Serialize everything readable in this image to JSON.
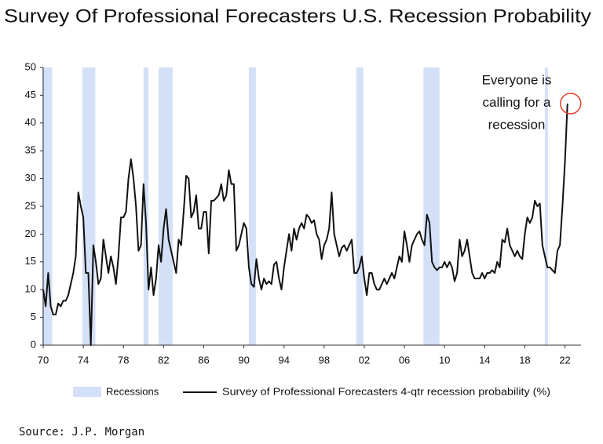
{
  "chart_data": {
    "type": "line",
    "title": "Survey Of Professional Forecasters U.S. Recession Probability",
    "source": "Source: J.P. Morgan",
    "annotation": [
      "Everyone is",
      "calling for a",
      "recession"
    ],
    "annotation_color": "#e0402a",
    "shading": {
      "name": "Recessions",
      "color": "#d3e0f7",
      "periods": [
        [
          1969.9,
          1970.9
        ],
        [
          1973.9,
          1975.2
        ],
        [
          1980.0,
          1980.5
        ],
        [
          1981.5,
          1982.9
        ],
        [
          1990.5,
          1991.2
        ],
        [
          2001.2,
          2001.9
        ],
        [
          2007.9,
          2009.5
        ],
        [
          2020.0,
          2020.3
        ]
      ]
    },
    "xlim": [
      1970,
      2023.6
    ],
    "xticks": [
      {
        "value": 1970,
        "label": "70"
      },
      {
        "value": 1974,
        "label": "74"
      },
      {
        "value": 1978,
        "label": "78"
      },
      {
        "value": 1982,
        "label": "82"
      },
      {
        "value": 1986,
        "label": "86"
      },
      {
        "value": 1990,
        "label": "90"
      },
      {
        "value": 1994,
        "label": "94"
      },
      {
        "value": 1998,
        "label": "98"
      },
      {
        "value": 2002,
        "label": "02"
      },
      {
        "value": 2006,
        "label": "06"
      },
      {
        "value": 2010,
        "label": "10"
      },
      {
        "value": 2014,
        "label": "14"
      },
      {
        "value": 2018,
        "label": "18"
      },
      {
        "value": 2022,
        "label": "22"
      }
    ],
    "ylim": [
      0,
      50
    ],
    "yticks": [
      0,
      5,
      10,
      15,
      20,
      25,
      30,
      35,
      40,
      45,
      50
    ],
    "x": [
      1970,
      1970.25,
      1970.5,
      1970.75,
      1971,
      1971.25,
      1971.5,
      1971.75,
      1972,
      1972.25,
      1972.5,
      1972.75,
      1973,
      1973.25,
      1973.5,
      1973.75,
      1974,
      1974.25,
      1974.5,
      1974.75,
      1975,
      1975.25,
      1975.5,
      1975.75,
      1976,
      1976.25,
      1976.5,
      1976.75,
      1977,
      1977.25,
      1977.5,
      1977.75,
      1978,
      1978.25,
      1978.5,
      1978.75,
      1979,
      1979.25,
      1979.5,
      1979.75,
      1980,
      1980.25,
      1980.5,
      1980.75,
      1981,
      1981.25,
      1981.5,
      1981.75,
      1982,
      1982.25,
      1982.5,
      1982.75,
      1983,
      1983.25,
      1983.5,
      1983.75,
      1984,
      1984.25,
      1984.5,
      1984.75,
      1985,
      1985.25,
      1985.5,
      1985.75,
      1986,
      1986.25,
      1986.5,
      1986.75,
      1987,
      1987.25,
      1987.5,
      1987.75,
      1988,
      1988.25,
      1988.5,
      1988.75,
      1989,
      1989.25,
      1989.5,
      1989.75,
      1990,
      1990.25,
      1990.5,
      1990.75,
      1991,
      1991.25,
      1991.5,
      1991.75,
      1992,
      1992.25,
      1992.5,
      1992.75,
      1993,
      1993.25,
      1993.5,
      1993.75,
      1994,
      1994.25,
      1994.5,
      1994.75,
      1995,
      1995.25,
      1995.5,
      1995.75,
      1996,
      1996.25,
      1996.5,
      1996.75,
      1997,
      1997.25,
      1997.5,
      1997.75,
      1998,
      1998.25,
      1998.5,
      1998.75,
      1999,
      1999.25,
      1999.5,
      1999.75,
      2000,
      2000.25,
      2000.5,
      2000.75,
      2001,
      2001.25,
      2001.5,
      2001.75,
      2002,
      2002.25,
      2002.5,
      2002.75,
      2003,
      2003.25,
      2003.5,
      2003.75,
      2004,
      2004.25,
      2004.5,
      2004.75,
      2005,
      2005.25,
      2005.5,
      2005.75,
      2006,
      2006.25,
      2006.5,
      2006.75,
      2007,
      2007.25,
      2007.5,
      2007.75,
      2008,
      2008.25,
      2008.5,
      2008.75,
      2009,
      2009.25,
      2009.5,
      2009.75,
      2010,
      2010.25,
      2010.5,
      2010.75,
      2011,
      2011.25,
      2011.5,
      2011.75,
      2012,
      2012.25,
      2012.5,
      2012.75,
      2013,
      2013.25,
      2013.5,
      2013.75,
      2014,
      2014.25,
      2014.5,
      2014.75,
      2015,
      2015.25,
      2015.5,
      2015.75,
      2016,
      2016.25,
      2016.5,
      2016.75,
      2017,
      2017.25,
      2017.5,
      2017.75,
      2018,
      2018.25,
      2018.5,
      2018.75,
      2019,
      2019.25,
      2019.5,
      2019.75,
      2020,
      2020.25,
      2020.5,
      2020.75,
      2021,
      2021.25,
      2021.5,
      2021.75,
      2022,
      2022.25
    ],
    "series": [
      {
        "name": "Survey of Professional Forecasters 4-qtr recession probability (%)",
        "color": "#111111",
        "values": [
          10,
          7,
          13,
          7,
          5.5,
          5.5,
          7.5,
          7,
          8,
          8,
          9,
          11,
          13,
          16,
          27.5,
          25,
          23,
          13,
          13,
          0,
          18,
          15,
          11,
          12,
          19,
          16,
          13,
          16,
          14,
          11,
          16,
          23,
          23,
          24,
          30,
          33.5,
          30,
          25,
          17,
          18,
          29,
          22,
          10,
          14,
          9,
          12,
          18,
          15,
          21,
          24.5,
          19,
          17,
          15,
          13,
          19,
          18,
          24,
          30.5,
          30,
          23,
          24,
          27,
          21,
          21,
          24,
          24,
          16.5,
          26,
          26,
          26.5,
          27,
          29,
          26,
          27,
          31.5,
          29,
          29,
          17,
          18,
          20,
          22,
          21,
          14,
          11,
          10.5,
          15.5,
          12,
          10,
          12,
          11,
          11.5,
          11,
          14.5,
          15,
          12,
          10,
          14,
          17,
          20,
          17,
          21,
          19,
          21,
          22,
          21,
          23.5,
          23,
          22,
          22.5,
          20,
          19,
          15.5,
          18,
          19,
          21,
          27.5,
          20,
          18,
          16,
          17.5,
          18,
          17,
          18,
          19,
          13,
          13,
          14,
          16,
          12,
          9,
          13,
          13,
          11,
          10,
          10,
          11,
          12,
          11,
          12,
          13,
          12,
          14,
          16,
          15,
          20.5,
          18,
          15,
          18,
          19,
          20,
          20.5,
          19,
          18,
          23.5,
          22,
          15,
          14,
          13.5,
          14,
          14,
          15,
          14,
          15,
          14,
          11.5,
          13,
          19,
          16,
          17,
          19,
          16,
          13,
          12,
          12,
          12,
          13,
          12,
          13,
          13,
          13.5,
          13,
          15,
          14,
          19,
          18.5,
          21,
          18,
          17,
          16,
          17,
          16,
          15.5,
          20,
          23,
          22,
          23,
          26,
          25,
          25.5,
          18,
          16,
          14,
          14,
          13.5,
          13,
          17,
          18,
          25,
          33,
          43.5
        ]
      }
    ]
  }
}
